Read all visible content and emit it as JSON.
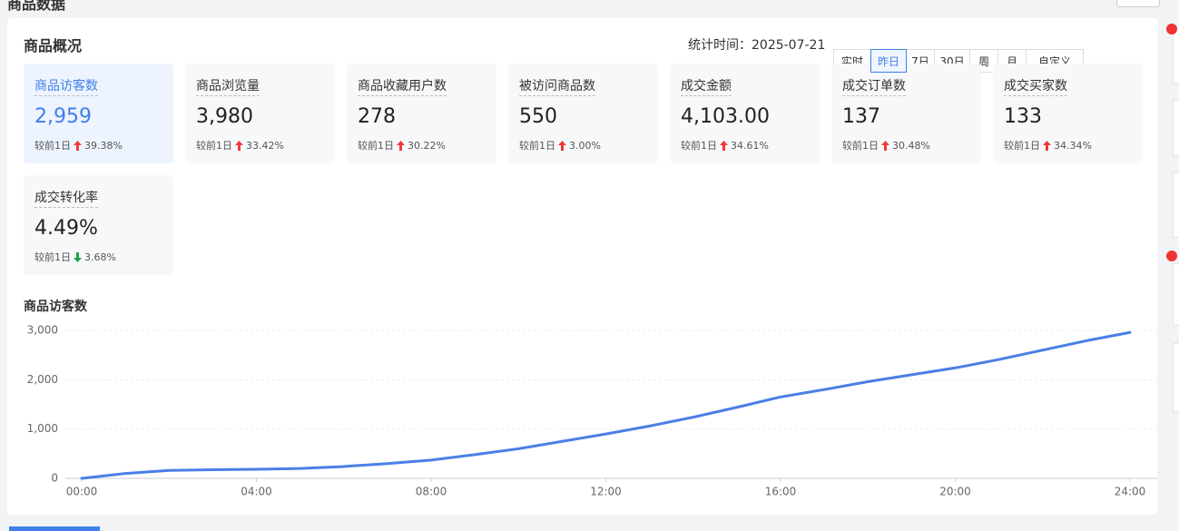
{
  "header": {
    "title": "商品数据"
  },
  "panel": {
    "title": "商品概况",
    "stat_time": "统计时间：2025-07-21",
    "ranges": [
      "实时",
      "昨日",
      "7日",
      "30日",
      "周",
      "月",
      "自定义"
    ],
    "active_range": 1,
    "selected_metric": 0,
    "metrics": [
      {
        "label": "商品访客数",
        "value": "2,959",
        "compare": "较前1日",
        "change": "39.38%",
        "direction": "up"
      },
      {
        "label": "商品浏览量",
        "value": "3,980",
        "compare": "较前1日",
        "change": "33.42%",
        "direction": "up"
      },
      {
        "label": "商品收藏用户数",
        "value": "278",
        "compare": "较前1日",
        "change": "30.22%",
        "direction": "up"
      },
      {
        "label": "被访问商品数",
        "value": "550",
        "compare": "较前1日",
        "change": "3.00%",
        "direction": "up"
      },
      {
        "label": "成交金额",
        "value": "4,103.00",
        "compare": "较前1日",
        "change": "34.61%",
        "direction": "up"
      },
      {
        "label": "成交订单数",
        "value": "137",
        "compare": "较前1日",
        "change": "30.48%",
        "direction": "up"
      },
      {
        "label": "成交买家数",
        "value": "133",
        "compare": "较前1日",
        "change": "34.34%",
        "direction": "up"
      },
      {
        "label": "成交转化率",
        "value": "4.49%",
        "compare": "较前1日",
        "change": "3.68%",
        "direction": "down"
      }
    ]
  },
  "chart_data": {
    "type": "line",
    "title": "商品访客数",
    "color": "#4a7fe6",
    "grid": true,
    "x": [
      0,
      1,
      2,
      3,
      4,
      5,
      6,
      7,
      8,
      9,
      10,
      11,
      12,
      13,
      14,
      15,
      16,
      17,
      18,
      19,
      20,
      21,
      22,
      23,
      24
    ],
    "values": [
      0,
      100,
      160,
      175,
      185,
      200,
      240,
      300,
      370,
      480,
      600,
      750,
      900,
      1060,
      1240,
      1440,
      1650,
      1800,
      1960,
      2100,
      2240,
      2410,
      2600,
      2790,
      2959
    ],
    "xlim": [
      0,
      24
    ],
    "xticks": [
      {
        "value": 0,
        "label": "00:00"
      },
      {
        "value": 4,
        "label": "04:00"
      },
      {
        "value": 8,
        "label": "08:00"
      },
      {
        "value": 12,
        "label": "12:00"
      },
      {
        "value": 16,
        "label": "16:00"
      },
      {
        "value": 20,
        "label": "20:00"
      },
      {
        "value": 24,
        "label": "24:00"
      }
    ],
    "ylim": [
      0,
      3000
    ],
    "yticks": [
      0,
      {
        "value": 1000,
        "label": "1,000"
      },
      {
        "value": 2000,
        "label": "2,000"
      },
      {
        "value": 3000,
        "label": "3,000"
      }
    ]
  }
}
